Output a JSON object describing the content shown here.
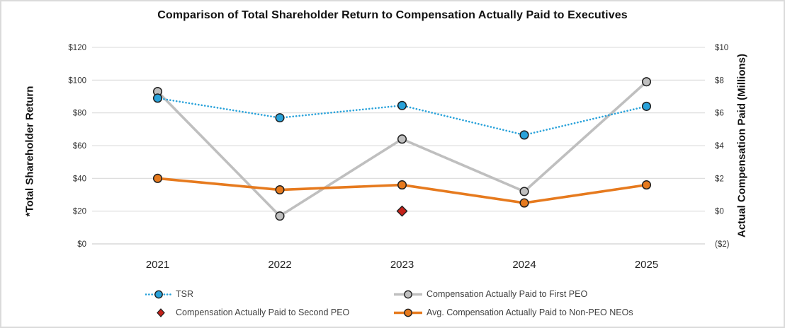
{
  "chart_data": {
    "type": "line",
    "title": "Comparison of Total Shareholder Return to Compensation Actually Paid to Executives",
    "left_axis_label": "*Total Shareholder Return",
    "right_axis_label": "Actual Compensation Paid (Millions)",
    "categories": [
      "2021",
      "2022",
      "2023",
      "2024",
      "2025"
    ],
    "left_ticks": [
      "$120",
      "$100",
      "$80",
      "$60",
      "$40",
      "$20",
      "$0"
    ],
    "right_ticks": [
      "$10",
      "$8",
      "$6",
      "$4",
      "$2",
      "$0",
      "($2)"
    ],
    "ylim_left": [
      0,
      120
    ],
    "ylim_right": [
      -2,
      10
    ],
    "grid": true,
    "legend_position": "bottom",
    "gridline_color": "#d9d9d9",
    "series": [
      {
        "name": "TSR",
        "axis": "left",
        "values": [
          89,
          77,
          84.5,
          66.5,
          84
        ],
        "color": "#29a2da",
        "line_style": "dotted",
        "marker": "circle"
      },
      {
        "name": "Compensation Actually Paid to First PEO",
        "axis": "right",
        "values": [
          7.3,
          -0.3,
          4.4,
          1.2,
          7.9
        ],
        "color": "#bfbfbf",
        "line_style": "solid",
        "marker": "circle"
      },
      {
        "name": "Compensation Actually Paid to Second PEO",
        "axis": "right",
        "values": [
          null,
          null,
          0,
          null,
          null
        ],
        "color": "#c42119",
        "line_style": "none",
        "marker": "diamond"
      },
      {
        "name": "Avg. Compensation Actually Paid to Non-PEO NEOs",
        "axis": "right",
        "values": [
          2.0,
          1.3,
          1.6,
          0.5,
          1.6
        ],
        "color": "#e67a1e",
        "line_style": "solid",
        "marker": "circle"
      }
    ]
  }
}
